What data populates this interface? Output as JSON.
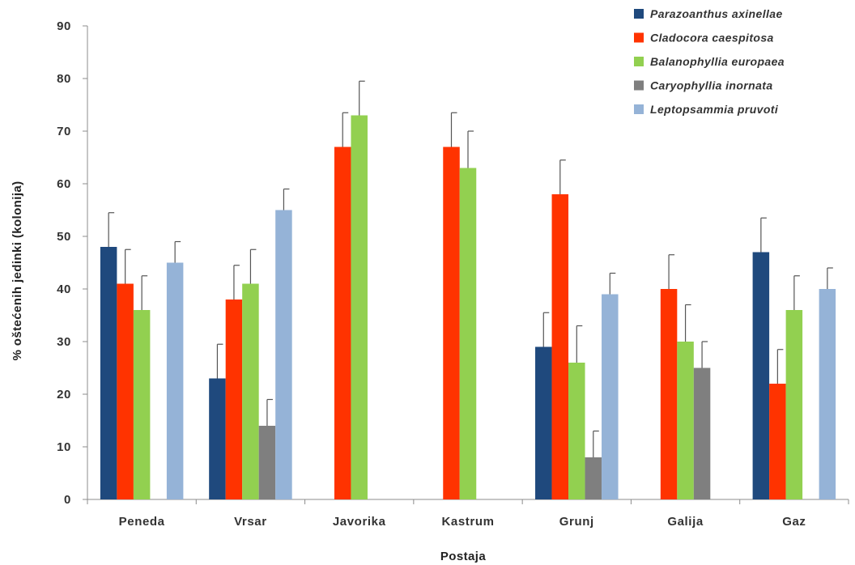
{
  "chart_data": {
    "type": "bar",
    "title": "",
    "xlabel": "Postaja",
    "ylabel": "% oštećenih jedinki (kolonija)",
    "ylim": [
      0,
      90
    ],
    "yticks": [
      0,
      10,
      20,
      30,
      40,
      50,
      60,
      70,
      80,
      90
    ],
    "grid": false,
    "legend_position": "top-right",
    "error_bars": true,
    "categories": [
      "Peneda",
      "Vrsar",
      "Javorika",
      "Kastrum",
      "Grunj",
      "Galija",
      "Gaz"
    ],
    "series": [
      {
        "name": "Parazoanthus axinellae",
        "color": "#1f497d",
        "values": [
          48,
          23,
          null,
          null,
          29,
          null,
          47
        ],
        "errors": [
          6.5,
          6.5,
          null,
          null,
          6.5,
          null,
          6.5
        ]
      },
      {
        "name": "Cladocora caespitosa",
        "color": "#ff3300",
        "values": [
          41,
          38,
          67,
          67,
          58,
          40,
          22
        ],
        "errors": [
          6.5,
          6.5,
          6.5,
          6.5,
          6.5,
          6.5,
          6.5
        ]
      },
      {
        "name": "Balanophyllia europaea",
        "color": "#92d050",
        "values": [
          36,
          41,
          73,
          63,
          26,
          30,
          36
        ],
        "errors": [
          6.5,
          6.5,
          6.5,
          7,
          7,
          7,
          6.5
        ]
      },
      {
        "name": "Caryophyllia inornata",
        "color": "#7f7f7f",
        "values": [
          null,
          14,
          null,
          null,
          8,
          25,
          null
        ],
        "errors": [
          null,
          5,
          null,
          null,
          5,
          5,
          null
        ]
      },
      {
        "name": "Leptopsammia pruvoti",
        "color": "#95b3d7",
        "values": [
          45,
          55,
          null,
          null,
          39,
          null,
          40
        ],
        "errors": [
          4,
          4,
          null,
          null,
          4,
          null,
          4
        ]
      }
    ]
  }
}
